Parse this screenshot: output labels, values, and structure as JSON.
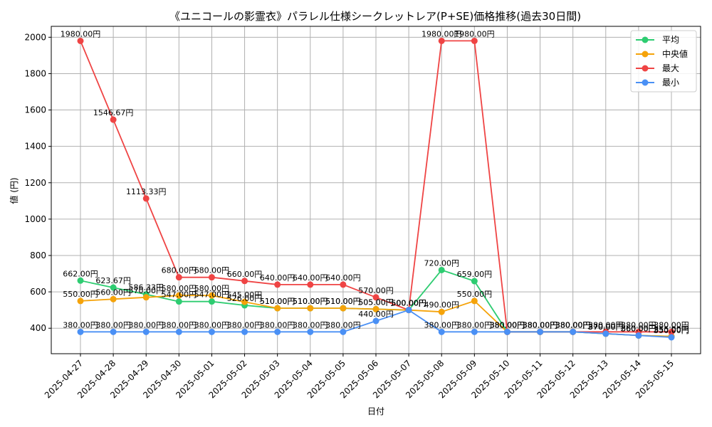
{
  "chart_data": {
    "type": "line",
    "title": "《ユニコールの影霊衣》パラレル仕様シークレットレア(P+SE)価格推移(過去30日間)",
    "xlabel": "日付",
    "ylabel": "値 (円)",
    "ylim": [
      260,
      2060
    ],
    "yticks": [
      400,
      600,
      800,
      1000,
      1200,
      1400,
      1600,
      1800,
      2000
    ],
    "ytick_labels": [
      "400",
      "600",
      "800",
      "1000",
      "1200",
      "1400",
      "1600",
      "1800",
      "2000"
    ],
    "grid": true,
    "legend_position": "top-right",
    "categories": [
      "2025-04-27",
      "2025-04-28",
      "2025-04-29",
      "2025-04-30",
      "2025-05-01",
      "2025-05-02",
      "2025-05-03",
      "2025-05-04",
      "2025-05-05",
      "2025-05-06",
      "2025-05-07",
      "2025-05-08",
      "2025-05-09",
      "2025-05-10",
      "2025-05-11",
      "2025-05-12",
      "2025-05-13",
      "2025-05-14",
      "2025-05-15"
    ],
    "series": [
      {
        "name": "平均",
        "color": "#2ecc71",
        "values": [
          662.0,
          623.67,
          586.33,
          547.0,
          547.0,
          526.0,
          510.0,
          510.0,
          510.0,
          505.0,
          500.0,
          720.0,
          659.0,
          380.0,
          380.0,
          380.0,
          370.0,
          360.0,
          355.0
        ],
        "labels": [
          "662.00円",
          "623.67円",
          "586.33円",
          "547.00円",
          "547.00円",
          "526.00円",
          "510.00円",
          "510.00円",
          "510.00円",
          "505.00円",
          "500.00円",
          "720.00円",
          "659.00円",
          "380.00円",
          "380.00円",
          "380.00円",
          "370.00円",
          "360.00円",
          "355.00円"
        ]
      },
      {
        "name": "中央値",
        "color": "#f5a30a",
        "values": [
          550.0,
          560.0,
          570.0,
          580.0,
          580.0,
          545.0,
          510.0,
          510.0,
          510.0,
          505.0,
          500.0,
          490.0,
          550.0,
          380.0,
          380.0,
          380.0,
          370.0,
          360.0,
          355.0
        ],
        "labels": [
          "550.00円",
          "560.00円",
          "570.00円",
          "580.00円",
          "580.00円",
          "545.00円",
          "510.00円",
          "510.00円",
          "510.00円",
          "505.00円",
          "500.00円",
          "490.00円",
          "550.00円",
          "380.00円",
          "380.00円",
          "380.00円",
          "370.00円",
          "360.00円",
          "355.00円"
        ]
      },
      {
        "name": "最大",
        "color": "#ef4444",
        "values": [
          1980.0,
          1546.67,
          1113.33,
          680.0,
          680.0,
          660.0,
          640.0,
          640.0,
          640.0,
          570.0,
          500.0,
          1980.0,
          1980.0,
          380.0,
          380.0,
          380.0,
          380.0,
          380.0,
          380.0
        ],
        "labels": [
          "1980.00円",
          "1546.67円",
          "1113.33円",
          "680.00円",
          "680.00円",
          "660.00円",
          "640.00円",
          "640.00円",
          "640.00円",
          "570.00円",
          "500.00円",
          "1980.00円",
          "1980.00円",
          "380.00円",
          "380.00円",
          "380.00円",
          "380.00円",
          "380.00円",
          "380.00円"
        ]
      },
      {
        "name": "最小",
        "color": "#4a90f5",
        "values": [
          380.0,
          380.0,
          380.0,
          380.0,
          380.0,
          380.0,
          380.0,
          380.0,
          380.0,
          440.0,
          500.0,
          380.0,
          380.0,
          380.0,
          380.0,
          380.0,
          370.0,
          360.0,
          350.0
        ],
        "labels": [
          "380.00円",
          "380.00円",
          "380.00円",
          "380.00円",
          "380.00円",
          "380.00円",
          "380.00円",
          "380.00円",
          "380.00円",
          "440.00円",
          "500.00円",
          "380.00円",
          "380.00円",
          "380.00円",
          "380.00円",
          "380.00円",
          "370.00円",
          "360.00円",
          "350.00円"
        ]
      }
    ]
  }
}
